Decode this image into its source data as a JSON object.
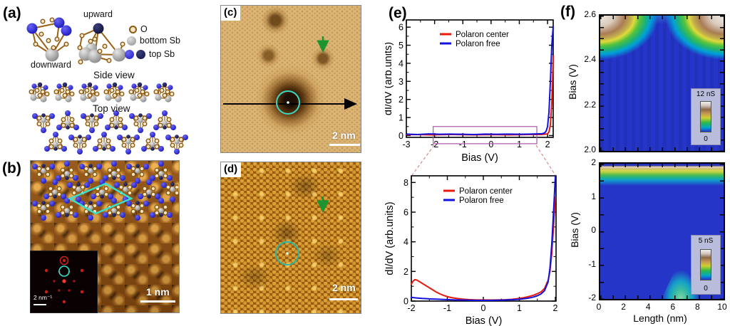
{
  "figure": {
    "panels": {
      "a": {
        "label": "(a)",
        "upward_label": "upward",
        "downward_label": "downward",
        "side_view_title": "Side view",
        "top_view_title": "Top view",
        "legend": [
          {
            "symbol": "oxygen-atom",
            "label": "O"
          },
          {
            "symbol": "bottom-antimony-atom",
            "label": "bottom Sb"
          },
          {
            "symbol": "top-antimony-atoms",
            "label": "top Sb"
          }
        ]
      },
      "b": {
        "label": "(b)",
        "scale_bar": "1 nm",
        "fft_inset": {
          "scale_label": "2 nm⁻¹"
        }
      },
      "c": {
        "label": "(c)",
        "scale_bar": "2 nm"
      },
      "d": {
        "label": "(d)",
        "scale_bar": "2 nm"
      },
      "e": {
        "label": "(e)"
      },
      "f": {
        "label": "(f)"
      }
    }
  },
  "chart_data": [
    {
      "type": "line",
      "panel": "e-top",
      "xlabel": "Bias (V)",
      "ylabel": "dI/dV (arb.units)",
      "xlim": [
        -3,
        2.2
      ],
      "ylim": [
        -0.1,
        6.4
      ],
      "xticks": [
        -3,
        -2,
        -1,
        0,
        1,
        2
      ],
      "xtick_labels": [
        "-3",
        "-2",
        "-1",
        "0",
        "1",
        "2"
      ],
      "x_minor_step": 0.5,
      "yticks": [
        0,
        1,
        2,
        3,
        4,
        5,
        6
      ],
      "ytick_labels": [
        "0",
        "1",
        "2",
        "3",
        "4",
        "5",
        "6"
      ],
      "y_minor_step": 0.5,
      "grid": false,
      "legend_position": "top-left-inside",
      "zoom_box": {
        "x0": -2.05,
        "x1": 1.62,
        "y0": -0.45,
        "y1": 0.5,
        "color": "#a85ba8"
      },
      "series": [
        {
          "name": "Polaron center",
          "color": "#e8190f",
          "x": [
            -3,
            -2.6,
            -2.2,
            -1.8,
            -1.4,
            -1.0,
            -0.6,
            -0.2,
            0.2,
            0.6,
            1.0,
            1.4,
            1.8,
            1.95,
            2.0,
            2.05,
            2.1,
            2.15,
            2.2
          ],
          "y": [
            0.05,
            0.06,
            0.04,
            0.05,
            0.06,
            0.05,
            0.04,
            0.05,
            0.05,
            0.04,
            0.05,
            0.06,
            0.06,
            0.08,
            0.1,
            0.2,
            0.6,
            1.8,
            4.4
          ]
        },
        {
          "name": "Polaron free",
          "color": "#1212e0",
          "x": [
            -3,
            -2.6,
            -2.2,
            -1.8,
            -1.4,
            -1.0,
            -0.6,
            -0.2,
            0.2,
            0.6,
            1.0,
            1.4,
            1.8,
            1.9,
            1.95,
            2.0,
            2.05,
            2.1,
            2.15,
            2.2
          ],
          "y": [
            0.08,
            0.06,
            0.09,
            0.07,
            0.08,
            0.07,
            0.06,
            0.08,
            0.07,
            0.08,
            0.07,
            0.08,
            0.1,
            0.15,
            0.25,
            0.5,
            1.3,
            3.0,
            5.0,
            6.05
          ]
        }
      ]
    },
    {
      "type": "line",
      "panel": "e-bottom",
      "xlabel": "Bias (V)",
      "ylabel": "dI/dV (arb.units)",
      "xlim": [
        -2,
        2.02
      ],
      "ylim": [
        0,
        8.45
      ],
      "xticks": [
        -2,
        -1,
        0,
        1,
        2
      ],
      "xtick_labels": [
        "-2",
        "-1",
        "0",
        "1",
        "2"
      ],
      "x_minor_step": 0.5,
      "yticks": [
        0,
        2,
        4,
        6,
        8
      ],
      "ytick_labels": [
        "0",
        "2",
        "4",
        "6",
        "8"
      ],
      "y_minor_step": 1,
      "grid": false,
      "legend_position": "top-left-inside",
      "series": [
        {
          "name": "Polaron center",
          "color": "#e8190f",
          "x": [
            -2,
            -1.95,
            -1.9,
            -1.85,
            -1.8,
            -1.7,
            -1.6,
            -1.5,
            -1.4,
            -1.3,
            -1.2,
            -1.1,
            -1.0,
            -0.9,
            -0.8,
            -0.6,
            -0.4,
            -0.2,
            0,
            0.2,
            0.4,
            0.6,
            0.8,
            1.0,
            1.1,
            1.2,
            1.3,
            1.4,
            1.5,
            1.6,
            1.7,
            1.8,
            1.85,
            1.9,
            1.95,
            2.0
          ],
          "y": [
            1.15,
            1.35,
            1.45,
            1.42,
            1.35,
            1.2,
            1.05,
            0.9,
            0.75,
            0.6,
            0.48,
            0.38,
            0.3,
            0.24,
            0.2,
            0.14,
            0.1,
            0.08,
            0.08,
            0.07,
            0.08,
            0.09,
            0.12,
            0.18,
            0.22,
            0.27,
            0.33,
            0.4,
            0.5,
            0.62,
            0.85,
            1.4,
            2.0,
            3.2,
            5.0,
            7.0
          ]
        },
        {
          "name": "Polaron free",
          "color": "#1212e0",
          "x": [
            -2,
            -1.9,
            -1.8,
            -1.7,
            -1.6,
            -1.5,
            -1.4,
            -1.3,
            -1.2,
            -1.1,
            -1.0,
            -0.9,
            -0.8,
            -0.6,
            -0.4,
            -0.2,
            0,
            0.2,
            0.4,
            0.6,
            0.8,
            1.0,
            1.1,
            1.2,
            1.3,
            1.4,
            1.5,
            1.6,
            1.7,
            1.8,
            1.85,
            1.9,
            1.95,
            2.0
          ],
          "y": [
            0.25,
            0.22,
            0.2,
            0.18,
            0.17,
            0.15,
            0.14,
            0.13,
            0.12,
            0.11,
            0.1,
            0.09,
            0.08,
            0.07,
            0.06,
            0.05,
            0.05,
            0.05,
            0.06,
            0.07,
            0.09,
            0.12,
            0.15,
            0.18,
            0.22,
            0.28,
            0.36,
            0.48,
            0.7,
            1.3,
            2.2,
            3.8,
            6.0,
            8.4
          ]
        }
      ]
    },
    {
      "type": "heatmap",
      "panel": "f-top",
      "ylabel": "Bias (V)",
      "ylim": [
        2.0,
        2.6
      ],
      "xlim": [
        0,
        10
      ],
      "ytick_labels": [
        "2.6",
        "2.4",
        "2.2",
        "2.0"
      ],
      "colorbar": {
        "max_label": "12 nS",
        "min_label": "0"
      },
      "features": [
        "high conductance (white/brown) lobes at bias 2.45-2.6 V for lengths 0-3 nm and 7-10 nm",
        "conductance onset pushed above 2.6 V near polaron center at length ~5 nm"
      ]
    },
    {
      "type": "heatmap",
      "panel": "f-bottom",
      "xlabel": "Length (nm)",
      "ylabel": "Bias (V)",
      "xlim": [
        0,
        10
      ],
      "ylim": [
        -2,
        2
      ],
      "xtick_labels": [
        "0",
        "2",
        "4",
        "6",
        "8",
        "10"
      ],
      "ytick_labels": [
        "2",
        "1",
        "0",
        "-1",
        "-2"
      ],
      "colorbar": {
        "max_label": "5 nS",
        "min_label": "0"
      },
      "features": [
        "uniform conduction-band onset band (green/yellow/brown) at bias 1.6-1.9 V across all lengths",
        "in-gap cyan/green cone from bias -1 V down to -2 V centered at length ~5 nm"
      ]
    }
  ]
}
